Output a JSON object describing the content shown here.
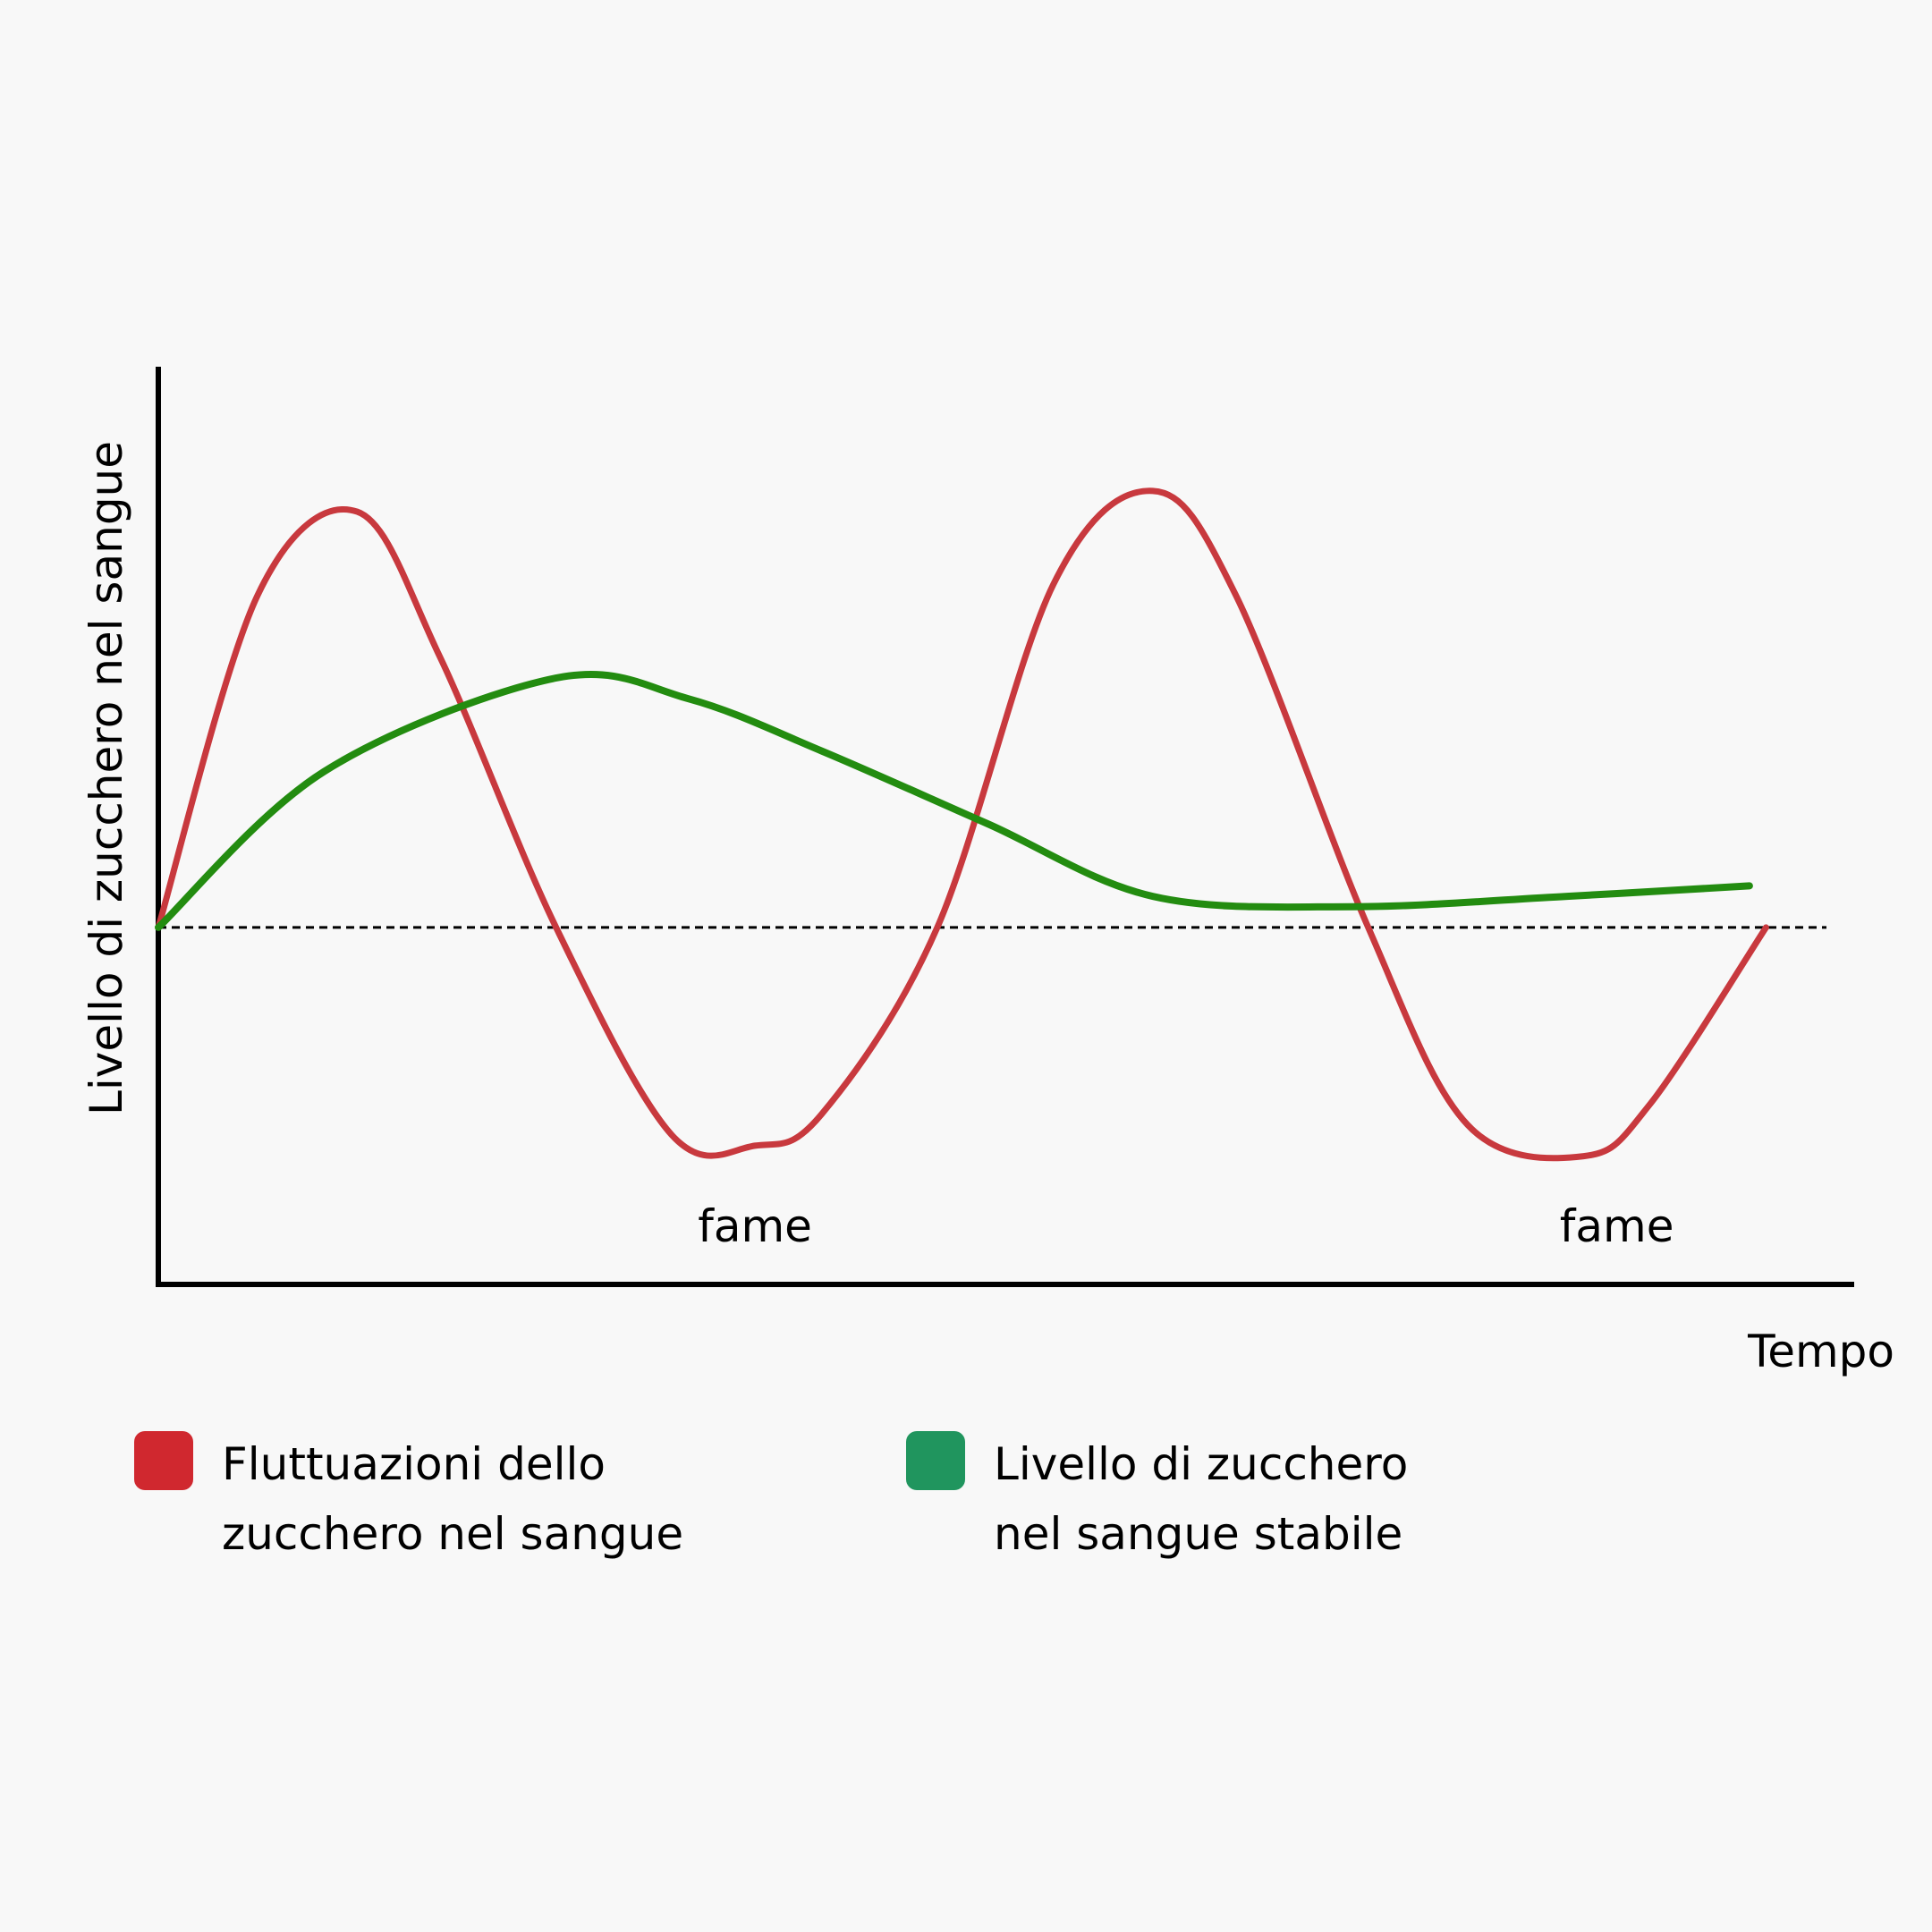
{
  "chart_data": {
    "type": "line",
    "title": "",
    "ylabel": "Livello di zucchero nel sangue",
    "xlabel": "Tempo",
    "xlim": [
      0,
      100
    ],
    "ylim": [
      0,
      100
    ],
    "baseline": 34,
    "series": [
      {
        "name": "Fluttuazioni dello zucchero nel sangue",
        "color": "#c8393e",
        "points": [
          [
            0,
            34
          ],
          [
            6,
            66
          ],
          [
            12,
            74
          ],
          [
            17,
            60
          ],
          [
            24,
            34
          ],
          [
            31,
            14
          ],
          [
            36,
            13
          ],
          [
            40,
            16
          ],
          [
            47,
            34
          ],
          [
            54,
            67
          ],
          [
            60,
            76
          ],
          [
            65,
            66
          ],
          [
            73,
            34
          ],
          [
            79,
            15
          ],
          [
            86,
            12
          ],
          [
            90,
            17
          ],
          [
            97,
            34
          ]
        ]
      },
      {
        "name": "Livello di zucchero nel sangue stabile",
        "color": "#238c10",
        "points": [
          [
            0,
            34
          ],
          [
            10,
            49
          ],
          [
            24,
            58
          ],
          [
            32,
            56
          ],
          [
            40,
            51
          ],
          [
            50,
            44
          ],
          [
            60,
            37
          ],
          [
            72,
            36
          ],
          [
            85,
            37
          ],
          [
            96,
            38
          ]
        ]
      }
    ],
    "annotations": [
      {
        "text": "fame",
        "x": 36
      },
      {
        "text": "fame",
        "x": 88
      }
    ],
    "legend": {
      "placement": "bottom",
      "items": [
        {
          "line1": "Fluttuazioni dello",
          "line2": "zucchero nel sangue",
          "color": "#d0282f"
        },
        {
          "line1": "Livello di zucchero",
          "line2": "nel sangue stabile",
          "color": "#20955e"
        }
      ]
    }
  }
}
